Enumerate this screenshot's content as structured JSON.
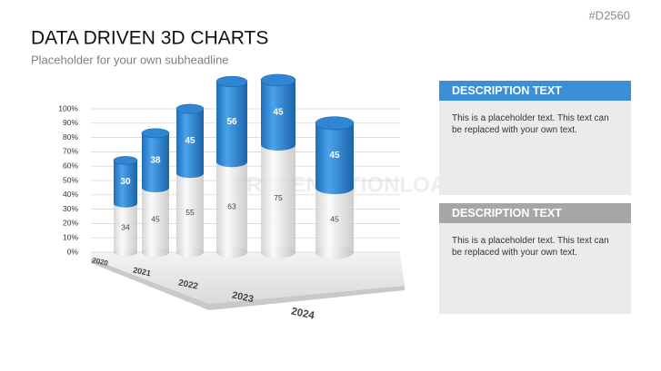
{
  "code": "#D2560",
  "watermark": "PRESENTATIONLOAD",
  "chart_data": {
    "type": "bar3d",
    "title": "DATA DRIVEN 3D CHARTS",
    "subtitle": "Placeholder for your own subheadline",
    "categories": [
      "2020",
      "2021",
      "2022",
      "2023",
      "2024",
      null
    ],
    "series": [
      {
        "color": "#d9d9d9",
        "values": [
          34,
          45,
          55,
          63,
          75,
          45
        ]
      },
      {
        "color": "#2f86d2",
        "values": [
          30,
          38,
          45,
          56,
          45,
          45
        ]
      }
    ],
    "ylim": [
      0,
      100
    ],
    "yticks": [
      {
        "value": 0,
        "label": "0%"
      },
      {
        "value": 10,
        "label": "10%"
      },
      {
        "value": 20,
        "label": "20%"
      },
      {
        "value": 30,
        "label": "30%"
      },
      {
        "value": 40,
        "label": "40%"
      },
      {
        "value": 50,
        "label": "50%"
      },
      {
        "value": 60,
        "label": "60%"
      },
      {
        "value": 70,
        "label": "70%"
      },
      {
        "value": 80,
        "label": "80%"
      },
      {
        "value": 90,
        "label": "90%"
      },
      {
        "value": 100,
        "label": "100%"
      }
    ],
    "grid": true
  },
  "descriptions": [
    {
      "title": "DESCRIPTION TEXT",
      "text": "This is a placeholder text. This text can be replaced with your own text."
    },
    {
      "title": "DESCRIPTION TEXT",
      "text": "This is a placeholder text. This text can be replaced with your own text."
    }
  ]
}
